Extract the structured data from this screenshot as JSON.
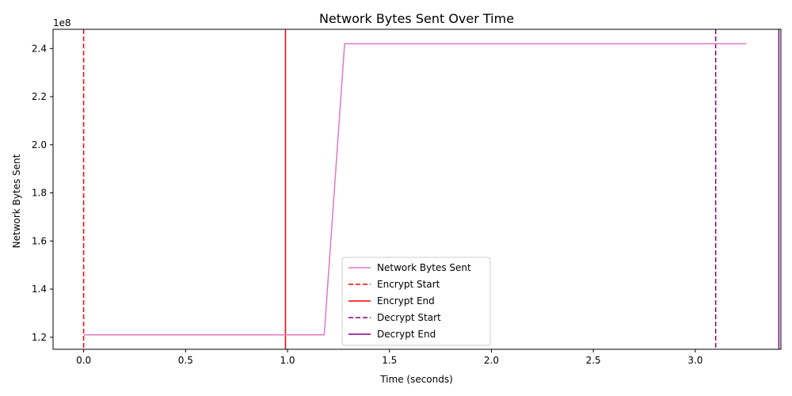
{
  "chart_data": {
    "type": "line",
    "title": "Network Bytes Sent Over Time",
    "xlabel": "Time (seconds)",
    "ylabel": "Network Bytes Sent",
    "y_multiplier_label": "1e8",
    "xlim": [
      -0.15,
      3.42
    ],
    "ylim": [
      1.15,
      2.48
    ],
    "y_scale_note": "values in units of 1e8 bytes",
    "x_ticks": [
      0.0,
      0.5,
      1.0,
      1.5,
      2.0,
      2.5,
      3.0
    ],
    "x_tick_labels": [
      "0.0",
      "0.5",
      "1.0",
      "1.5",
      "2.0",
      "2.5",
      "3.0"
    ],
    "y_ticks": [
      1.2,
      1.4,
      1.6,
      1.8,
      2.0,
      2.2,
      2.4
    ],
    "y_tick_labels": [
      "1.2",
      "1.4",
      "1.6",
      "1.8",
      "2.0",
      "2.2",
      "2.4"
    ],
    "grid": false,
    "legend_position": "lower-center",
    "series": [
      {
        "name": "Network Bytes Sent",
        "color": "#e377c2",
        "x": [
          0.0,
          1.18,
          1.28,
          3.25
        ],
        "y": [
          1.21,
          1.21,
          2.42,
          2.42
        ]
      }
    ],
    "vlines": [
      {
        "name": "Encrypt Start",
        "x": 0.0,
        "color": "#ff0000",
        "style": "dashed"
      },
      {
        "name": "Encrypt End",
        "x": 0.99,
        "color": "#ff0000",
        "style": "solid"
      },
      {
        "name": "Decrypt Start",
        "x": 3.1,
        "color": "#800080",
        "style": "dashed"
      },
      {
        "name": "Decrypt End",
        "x": 3.41,
        "color": "#800080",
        "style": "solid"
      }
    ]
  }
}
